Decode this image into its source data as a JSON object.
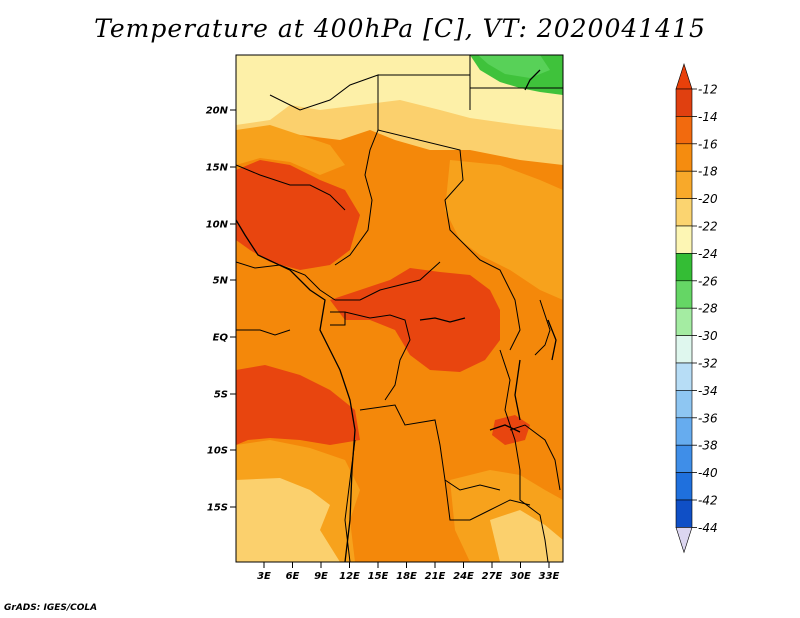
{
  "title": "Temperature at 400hPa [C], VT: 2020041415",
  "credit": "GrADS: IGES/COLA",
  "map": {
    "lat_labels": [
      "20N",
      "15N",
      "10N",
      "5N",
      "EQ",
      "5S",
      "10S",
      "15S"
    ],
    "lon_labels": [
      "3E",
      "6E",
      "9E",
      "12E",
      "15E",
      "18E",
      "21E",
      "24E",
      "27E",
      "30E",
      "33E"
    ],
    "colors": {
      "c12": "#e8450f",
      "c14": "#f4880a",
      "c16": "#f7a21c",
      "c18": "#fbd06d",
      "c20": "#fdf0a8",
      "c22": "#3fc23b",
      "c24": "#58d158"
    }
  },
  "colorbar": {
    "labels": [
      "-12",
      "-14",
      "-16",
      "-18",
      "-20",
      "-22",
      "-24",
      "-26",
      "-28",
      "-30",
      "-32",
      "-34",
      "-36",
      "-38",
      "-40",
      "-42",
      "-44"
    ],
    "colors": [
      "#e04010",
      "#f26a0e",
      "#f58c0f",
      "#f8a92a",
      "#fbd470",
      "#fdf6b4",
      "#34bd35",
      "#65d665",
      "#a4eca2",
      "#dff7ee",
      "#b7ddf6",
      "#8ec6f2",
      "#66acef",
      "#3f8ee8",
      "#1f70dd",
      "#0f4fc6",
      "#0a1f78"
    ],
    "top_arrow_color": "#e8400a",
    "bottom_arrow_color": "#dcd6f0"
  }
}
